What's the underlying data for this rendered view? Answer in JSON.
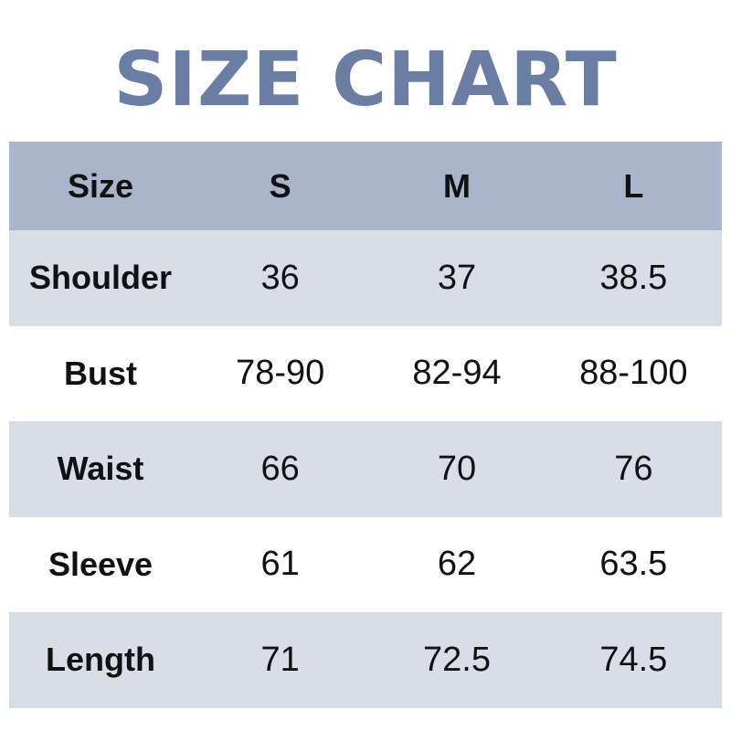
{
  "title": "SIZE CHART",
  "colors": {
    "title": "#6a7ea3",
    "header_bg": "#aab5cb",
    "row_shade": "#d9dde8"
  },
  "table": {
    "headers": [
      "Size",
      "S",
      "M",
      "L"
    ],
    "rows": [
      {
        "label": "Shoulder",
        "values": [
          "36",
          "37",
          "38.5"
        ]
      },
      {
        "label": "Bust",
        "values": [
          "78-90",
          "82-94",
          "88-100"
        ]
      },
      {
        "label": "Waist",
        "values": [
          "66",
          "70",
          "76"
        ]
      },
      {
        "label": "Sleeve",
        "values": [
          "61",
          "62",
          "63.5"
        ]
      },
      {
        "label": "Length",
        "values": [
          "71",
          "72.5",
          "74.5"
        ]
      }
    ]
  }
}
